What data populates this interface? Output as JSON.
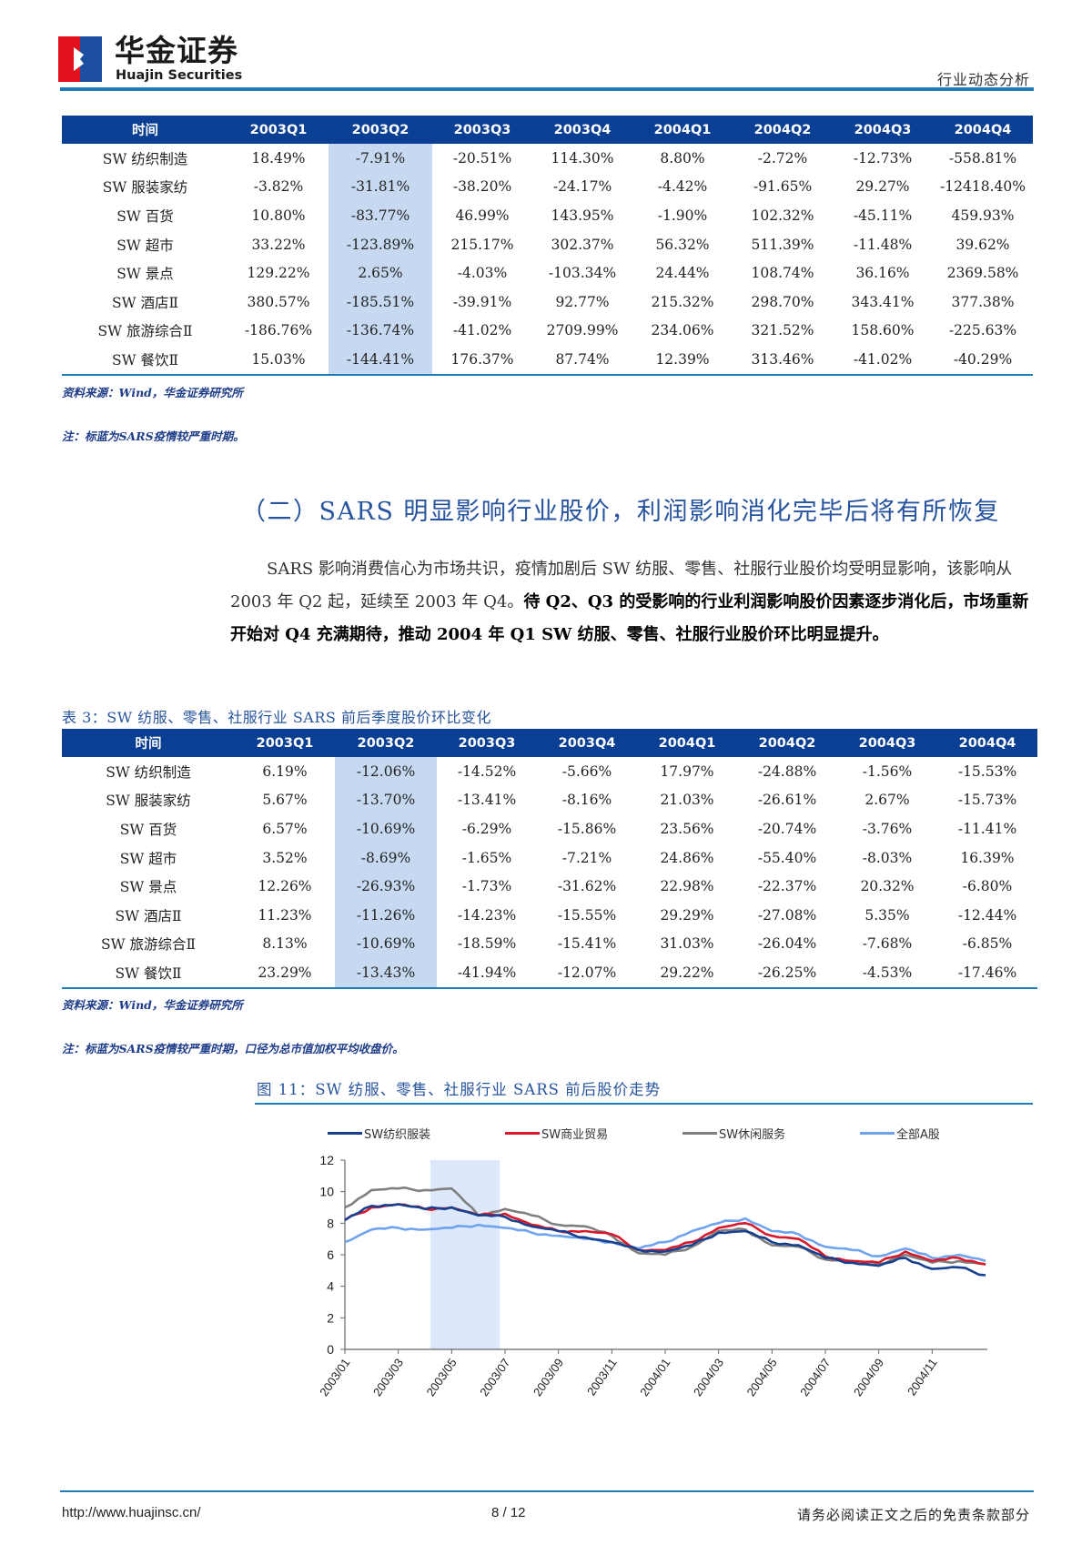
{
  "header": {
    "brand_cn": "华金证券",
    "brand_en": "Huajin Securities",
    "doc_type": "行业动态分析"
  },
  "table1": {
    "columns": [
      "时间",
      "2003Q1",
      "2003Q2",
      "2003Q3",
      "2003Q4",
      "2004Q1",
      "2004Q2",
      "2004Q3",
      "2004Q4"
    ],
    "highlight_column": "2003Q2",
    "rows": [
      [
        "SW 纺织制造",
        "18.49%",
        "-7.91%",
        "-20.51%",
        "114.30%",
        "8.80%",
        "-2.72%",
        "-12.73%",
        "-558.81%"
      ],
      [
        "SW 服装家纺",
        "-3.82%",
        "-31.81%",
        "-38.20%",
        "-24.17%",
        "-4.42%",
        "-91.65%",
        "29.27%",
        "-12418.40%"
      ],
      [
        "SW 百货",
        "10.80%",
        "-83.77%",
        "46.99%",
        "143.95%",
        "-1.90%",
        "102.32%",
        "-45.11%",
        "459.93%"
      ],
      [
        "SW 超市",
        "33.22%",
        "-123.89%",
        "215.17%",
        "302.37%",
        "56.32%",
        "511.39%",
        "-11.48%",
        "39.62%"
      ],
      [
        "SW 景点",
        "129.22%",
        "2.65%",
        "-4.03%",
        "-103.34%",
        "24.44%",
        "108.74%",
        "36.16%",
        "2369.58%"
      ],
      [
        "SW 酒店Ⅱ",
        "380.57%",
        "-185.51%",
        "-39.91%",
        "92.77%",
        "215.32%",
        "298.70%",
        "343.41%",
        "377.38%"
      ],
      [
        "SW 旅游综合Ⅱ",
        "-186.76%",
        "-136.74%",
        "-41.02%",
        "2709.99%",
        "234.06%",
        "321.52%",
        "158.60%",
        "-225.63%"
      ],
      [
        "SW 餐饮Ⅱ",
        "15.03%",
        "-144.41%",
        "176.37%",
        "87.74%",
        "12.39%",
        "313.46%",
        "-41.02%",
        "-40.29%"
      ]
    ],
    "source": "资料来源：Wind，华金证券研究所",
    "note": "注：标蓝为SARS疫情较严重时期。"
  },
  "section": {
    "title": "（二）SARS 明显影响行业股价，利润影响消化完毕后将有所恢复",
    "para_normal": "SARS 影响消费信心为市场共识，疫情加剧后 SW 纺服、零售、社服行业股价均受明显影响，该影响从 2003 年 Q2 起，延续至 2003 年 Q4。",
    "para_bold": "待 Q2、Q3 的受影响的行业利润影响股价因素逐步消化后，市场重新开始对 Q4 充满期待，推动 2004 年 Q1 SW 纺服、零售、社服行业股价环比明显提升。"
  },
  "table3": {
    "title": "表 3：SW 纺服、零售、社服行业 SARS 前后季度股价环比变化",
    "columns": [
      "时间",
      "2003Q1",
      "2003Q2",
      "2003Q3",
      "2003Q4",
      "2004Q1",
      "2004Q2",
      "2004Q3",
      "2004Q4"
    ],
    "highlight_column": "2003Q2",
    "rows": [
      [
        "SW 纺织制造",
        "6.19%",
        "-12.06%",
        "-14.52%",
        "-5.66%",
        "17.97%",
        "-24.88%",
        "-1.56%",
        "-15.53%"
      ],
      [
        "SW 服装家纺",
        "5.67%",
        "-13.70%",
        "-13.41%",
        "-8.16%",
        "21.03%",
        "-26.61%",
        "2.67%",
        "-15.73%"
      ],
      [
        "SW 百货",
        "6.57%",
        "-10.69%",
        "-6.29%",
        "-15.86%",
        "23.56%",
        "-20.74%",
        "-3.76%",
        "-11.41%"
      ],
      [
        "SW 超市",
        "3.52%",
        "-8.69%",
        "-1.65%",
        "-7.21%",
        "24.86%",
        "-55.40%",
        "-8.03%",
        "16.39%"
      ],
      [
        "SW 景点",
        "12.26%",
        "-26.93%",
        "-1.73%",
        "-31.62%",
        "22.98%",
        "-22.37%",
        "20.32%",
        "-6.80%"
      ],
      [
        "SW 酒店Ⅱ",
        "11.23%",
        "-11.26%",
        "-14.23%",
        "-15.55%",
        "29.29%",
        "-27.08%",
        "5.35%",
        "-12.44%"
      ],
      [
        "SW 旅游综合Ⅱ",
        "8.13%",
        "-10.69%",
        "-18.59%",
        "-15.41%",
        "31.03%",
        "-26.04%",
        "-7.68%",
        "-6.85%"
      ],
      [
        "SW 餐饮Ⅱ",
        "23.29%",
        "-13.43%",
        "-41.94%",
        "-12.07%",
        "29.22%",
        "-26.25%",
        "-4.53%",
        "-17.46%"
      ]
    ],
    "source": "资料来源：Wind，华金证券研究所",
    "note": "注：标蓝为SARS疫情较严重时期，口径为总市值加权平均收盘价。"
  },
  "figure": {
    "title": "图 11：SW 纺服、零售、社服行业 SARS 前后股价走势"
  },
  "chart_data": {
    "type": "line",
    "title": "图 11：SW 纺服、零售、社服行业 SARS 前后股价走势",
    "xlabel": "",
    "ylabel": "",
    "ylim": [
      0,
      12
    ],
    "yticks": [
      0,
      2,
      4,
      6,
      8,
      10,
      12
    ],
    "x_tick_labels": [
      "2003/01",
      "2003/03",
      "2003/05",
      "2003/07",
      "2003/09",
      "2003/11",
      "2004/01",
      "2004/03",
      "2004/05",
      "2004/07",
      "2004/09",
      "2004/11"
    ],
    "x": [
      "2003/01",
      "2003/02",
      "2003/03",
      "2003/04",
      "2003/05",
      "2003/06",
      "2003/07",
      "2003/08",
      "2003/09",
      "2003/10",
      "2003/11",
      "2003/12",
      "2004/01",
      "2004/02",
      "2004/03",
      "2004/04",
      "2004/05",
      "2004/06",
      "2004/07",
      "2004/08",
      "2004/09",
      "2004/10",
      "2004/11",
      "2004/12",
      "2004/12-end"
    ],
    "shaded_region": {
      "from": "2003/04 (mid)",
      "to": "2003/06 (mid)",
      "color": "#dde9fb"
    },
    "legend_position": "top",
    "grid": false,
    "series": [
      {
        "name": "SW纺织服装",
        "color": "#17408f",
        "values": [
          8.2,
          9.1,
          9.2,
          8.9,
          9.0,
          8.5,
          8.4,
          7.8,
          7.5,
          7.1,
          6.8,
          6.3,
          6.2,
          6.6,
          7.4,
          7.5,
          6.8,
          6.6,
          5.8,
          5.5,
          5.3,
          5.8,
          5.1,
          5.2,
          4.7
        ]
      },
      {
        "name": "SW商业贸易",
        "color": "#d7192b",
        "values": [
          8.2,
          9.0,
          9.2,
          8.9,
          9.0,
          8.5,
          8.6,
          7.9,
          7.5,
          7.5,
          7.3,
          6.3,
          6.3,
          6.8,
          7.7,
          8.0,
          7.2,
          7.0,
          5.9,
          5.6,
          5.5,
          6.2,
          5.6,
          5.8,
          5.4
        ]
      },
      {
        "name": "SW休闲服务",
        "color": "#7f7f7f",
        "values": [
          9.0,
          10.1,
          10.2,
          10.1,
          10.2,
          8.5,
          8.9,
          8.5,
          7.9,
          7.8,
          7.2,
          6.1,
          6.0,
          6.5,
          7.5,
          7.6,
          6.6,
          6.5,
          5.7,
          5.6,
          5.4,
          6.0,
          5.5,
          5.6,
          5.4
        ]
      },
      {
        "name": "全部A股",
        "color": "#6fa3ee",
        "values": [
          6.8,
          7.6,
          7.7,
          7.6,
          7.7,
          7.9,
          7.7,
          7.4,
          7.2,
          7.0,
          6.8,
          6.4,
          6.8,
          7.5,
          8.0,
          8.3,
          7.5,
          7.3,
          6.5,
          6.3,
          5.9,
          6.4,
          5.8,
          6.0,
          5.6
        ]
      }
    ]
  },
  "footer": {
    "url": "http://www.huajinsc.cn/",
    "page": "8 / 12",
    "disclaimer": "请务必阅读正文之后的免责条款部分"
  }
}
